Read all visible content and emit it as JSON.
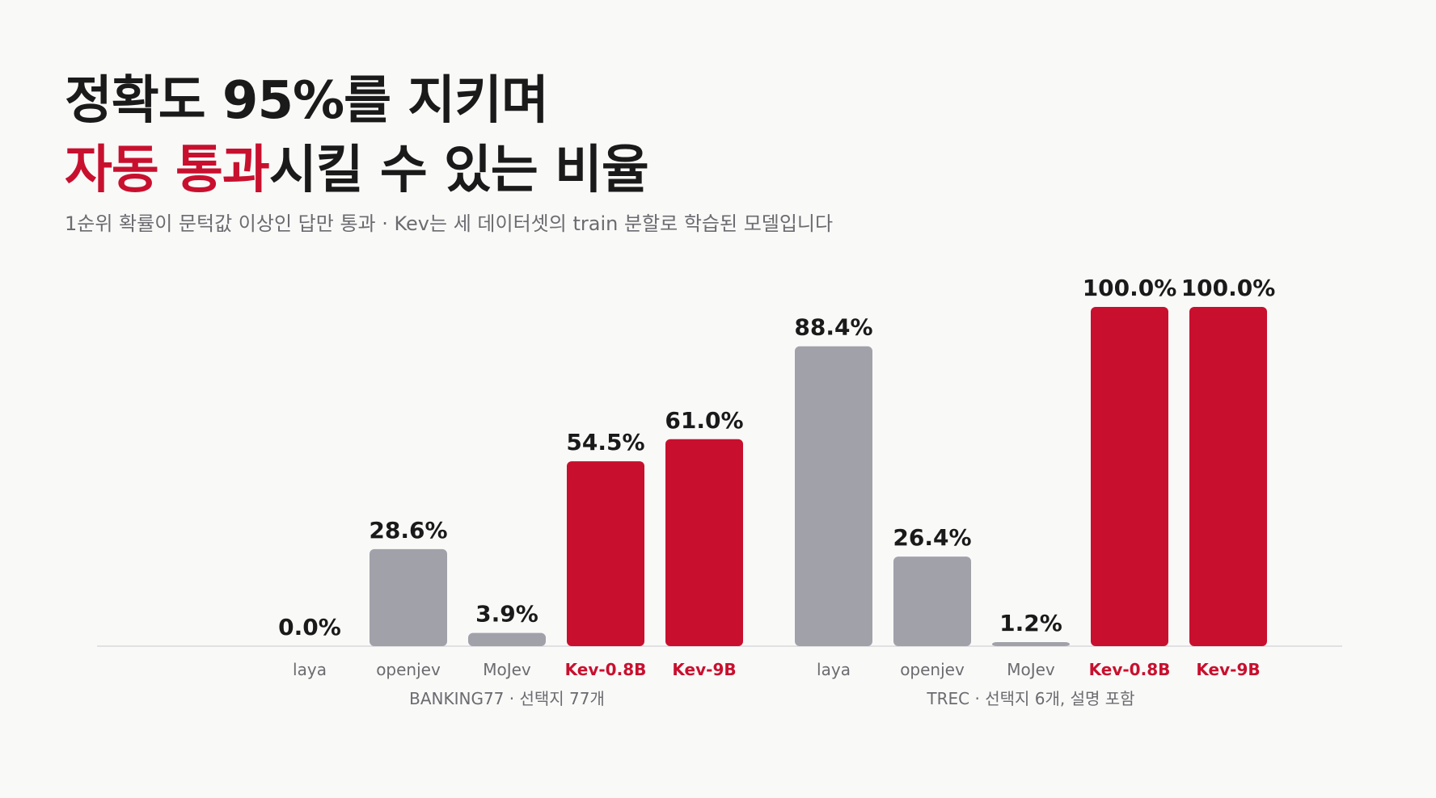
{
  "header": {
    "title_line1": "정확도 95%를 지키며",
    "title_accent": "자동 통과",
    "title_line2_rest": "시킬 수 있는 비율",
    "subtitle": "1순위 확률이 문턱값 이상인 답만 통과 · Kev는 세 데이터셋의 train 분할로 학습된 모델입니다"
  },
  "colors": {
    "accent": "#c8102e",
    "baseline_bar": "#a1a1aa",
    "text": "#1a1a1a",
    "muted": "#6b6b70"
  },
  "chart_data": [
    {
      "type": "bar",
      "group_label": "BANKING77 · 선택지 77개",
      "categories": [
        "laya",
        "openjev",
        "MoJev",
        "Kev-0.8B",
        "Kev-9B"
      ],
      "values": [
        0.0,
        28.6,
        3.9,
        54.5,
        61.0
      ],
      "value_labels": [
        "0.0%",
        "28.6%",
        "3.9%",
        "54.5%",
        "61.0%"
      ],
      "highlighted": [
        false,
        false,
        false,
        true,
        true
      ],
      "ylim": [
        0,
        100
      ]
    },
    {
      "type": "bar",
      "group_label": "TREC · 선택지 6개, 설명 포함",
      "categories": [
        "laya",
        "openjev",
        "MoJev",
        "Kev-0.8B",
        "Kev-9B"
      ],
      "values": [
        88.4,
        26.4,
        1.2,
        100.0,
        100.0
      ],
      "value_labels": [
        "88.4%",
        "26.4%",
        "1.2%",
        "100.0%",
        "100.0%"
      ],
      "highlighted": [
        false,
        false,
        false,
        true,
        true
      ],
      "ylim": [
        0,
        100
      ]
    }
  ]
}
